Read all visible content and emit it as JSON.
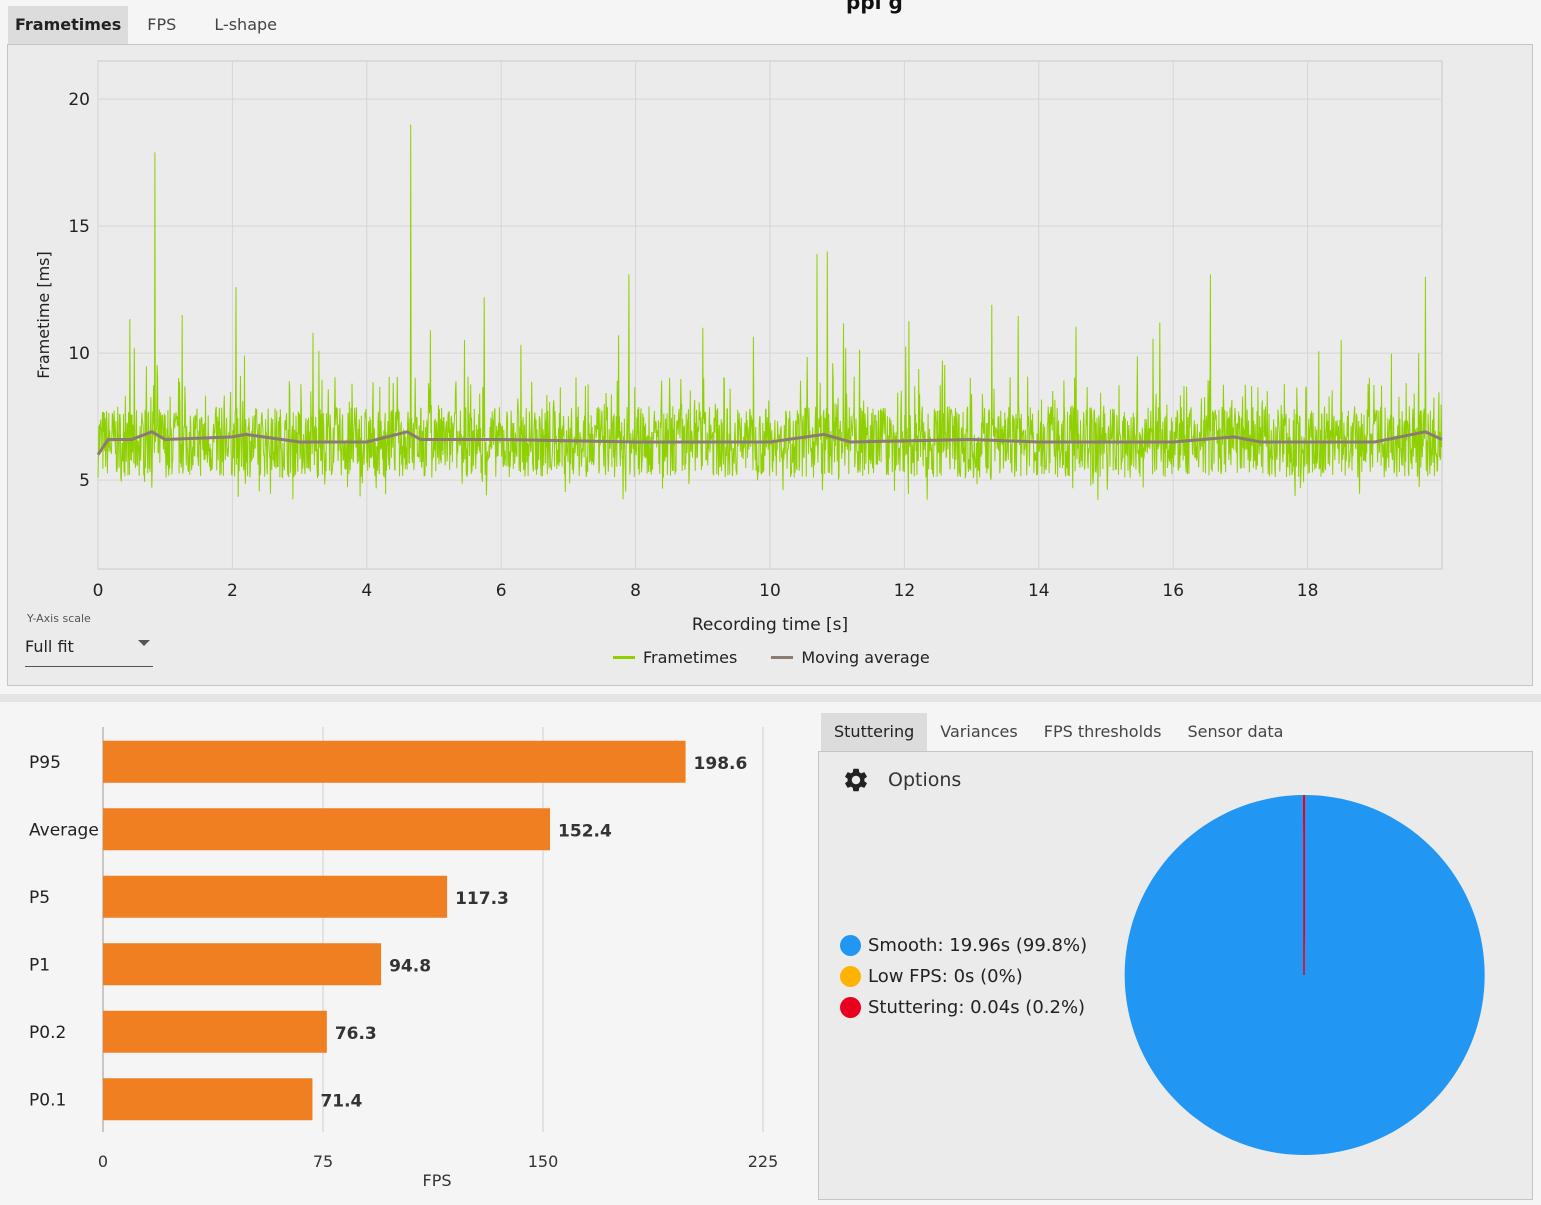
{
  "window": {
    "title_fragment": "ppi g"
  },
  "top_tabs": [
    {
      "label": "Frametimes",
      "active": true
    },
    {
      "label": "FPS",
      "active": false
    },
    {
      "label": "L-shape",
      "active": false
    }
  ],
  "y_axis_scale": {
    "label": "Y-Axis scale",
    "value": "Full fit"
  },
  "frametime_chart": {
    "ylabel": "Frametime [ms]",
    "xlabel": "Recording time [s]",
    "legend": [
      {
        "label": "Frametimes",
        "color": "#8fd000"
      },
      {
        "label": "Moving average",
        "color": "#8c7b72"
      }
    ],
    "colors": {
      "frametimes": "#8fd000",
      "moving_average": "#8c7b72"
    }
  },
  "bar_chart_axis": {
    "xlabel": "FPS"
  },
  "stutter_tabs": [
    {
      "label": "Stuttering",
      "active": true
    },
    {
      "label": "Variances",
      "active": false
    },
    {
      "label": "FPS thresholds",
      "active": false
    },
    {
      "label": "Sensor data",
      "active": false
    }
  ],
  "options": {
    "label": "Options",
    "icon": "gear-icon"
  },
  "pie_legend": [
    {
      "label": "Smooth:",
      "value": "19.96s (99.8%)",
      "color": "#2196f3"
    },
    {
      "label": "Low FPS:",
      "value": "0s (0%)",
      "color": "#ffb300"
    },
    {
      "label": "Stuttering:",
      "value": "0.04s (0.2%)",
      "color": "#e8001c"
    }
  ],
  "chart_data": [
    {
      "type": "line",
      "title": "",
      "xlabel": "Recording time [s]",
      "ylabel": "Frametime [ms]",
      "xlim": [
        0,
        20
      ],
      "ylim": [
        1.5,
        21.5
      ],
      "xticks": [
        0,
        2,
        4,
        6,
        8,
        10,
        12,
        14,
        16,
        18
      ],
      "yticks": [
        5,
        10,
        15,
        20
      ],
      "grid": true,
      "legend_position": "bottom",
      "series": [
        {
          "name": "Frametimes",
          "baseline_ms": 6.5,
          "range_ms": [
            4.2,
            19.0
          ],
          "spikes": [
            {
              "x": 0.85,
              "y": 17.9
            },
            {
              "x": 2.05,
              "y": 12.6
            },
            {
              "x": 1.25,
              "y": 11.5
            },
            {
              "x": 4.65,
              "y": 19.0
            },
            {
              "x": 5.75,
              "y": 12.2
            },
            {
              "x": 7.9,
              "y": 13.1
            },
            {
              "x": 10.7,
              "y": 13.9
            },
            {
              "x": 10.85,
              "y": 14.0
            },
            {
              "x": 13.3,
              "y": 11.9
            },
            {
              "x": 16.55,
              "y": 13.1
            },
            {
              "x": 19.75,
              "y": 13.0
            },
            {
              "x": 3.2,
              "y": 10.8
            },
            {
              "x": 9.0,
              "y": 11.0
            },
            {
              "x": 15.8,
              "y": 11.2
            }
          ]
        },
        {
          "name": "Moving average",
          "points": [
            [
              0.0,
              6.0
            ],
            [
              0.15,
              6.6
            ],
            [
              0.5,
              6.6
            ],
            [
              0.8,
              6.9
            ],
            [
              1.0,
              6.6
            ],
            [
              2.0,
              6.7
            ],
            [
              2.2,
              6.8
            ],
            [
              3.0,
              6.5
            ],
            [
              4.0,
              6.5
            ],
            [
              4.6,
              6.9
            ],
            [
              4.8,
              6.6
            ],
            [
              6.0,
              6.6
            ],
            [
              8.0,
              6.5
            ],
            [
              10.0,
              6.5
            ],
            [
              10.8,
              6.8
            ],
            [
              11.2,
              6.5
            ],
            [
              13.0,
              6.6
            ],
            [
              14.0,
              6.5
            ],
            [
              16.0,
              6.5
            ],
            [
              16.9,
              6.7
            ],
            [
              17.3,
              6.5
            ],
            [
              19.0,
              6.5
            ],
            [
              19.75,
              6.9
            ],
            [
              20.0,
              6.6
            ]
          ]
        }
      ]
    },
    {
      "type": "bar",
      "orientation": "horizontal",
      "categories": [
        "P95",
        "Average",
        "P5",
        "P1",
        "P0.2",
        "P0.1"
      ],
      "values": [
        198.6,
        152.4,
        117.3,
        94.8,
        76.3,
        71.4
      ],
      "value_labels": [
        "198.6",
        "152.4",
        "117.3",
        "94.8",
        "76.3",
        "71.4"
      ],
      "xlabel": "FPS",
      "xlim": [
        0,
        225
      ],
      "xticks": [
        0,
        75,
        150,
        225
      ],
      "color": "#f07f22"
    },
    {
      "type": "pie",
      "labels": [
        "Smooth",
        "Low FPS",
        "Stuttering"
      ],
      "values": [
        99.8,
        0,
        0.2
      ],
      "colors": [
        "#2196f3",
        "#ffb300",
        "#e8001c"
      ]
    }
  ]
}
